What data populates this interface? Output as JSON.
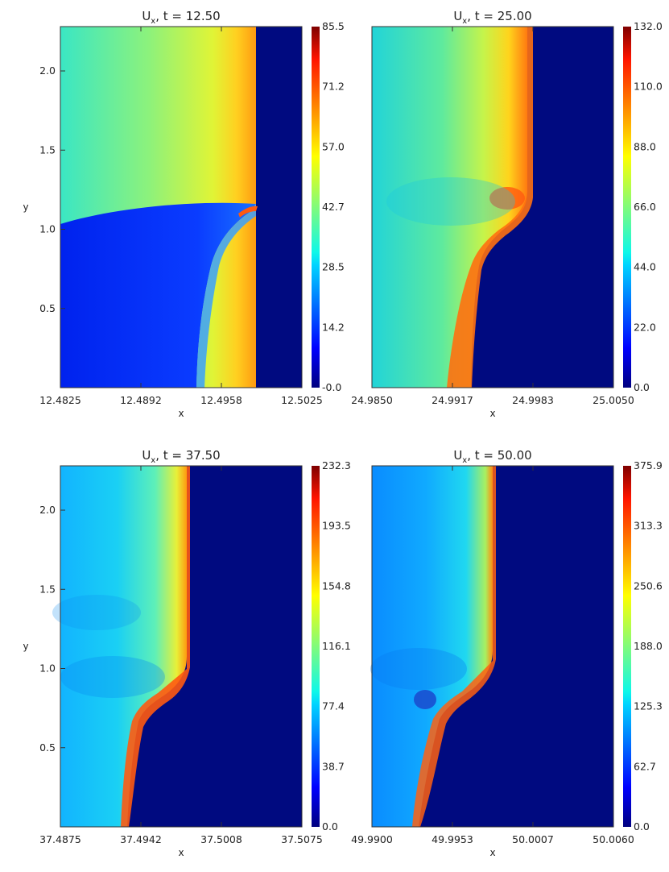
{
  "chart_data": [
    {
      "type": "heatmap",
      "title": "U_x, t = 12.50",
      "title_main": "U",
      "title_sub": "x",
      "title_rest": ", t = 12.50",
      "xlabel": "x",
      "ylabel": "y",
      "xlim": [
        12.4825,
        12.5025
      ],
      "ylim": [
        0.0,
        2.28
      ],
      "xticks": [
        "12.4825",
        "12.4892",
        "12.4958",
        "12.5025"
      ],
      "yticks": [
        "0.5",
        "1.0",
        "1.5",
        "2.0"
      ],
      "colorbar": {
        "min": 0.0,
        "max": 85.5,
        "labels": [
          "-0.0",
          "14.2",
          "28.5",
          "42.7",
          "57.0",
          "71.2",
          "85.5"
        ]
      }
    },
    {
      "type": "heatmap",
      "title": "U_x, t = 25.00",
      "title_main": "U",
      "title_sub": "x",
      "title_rest": ", t = 25.00",
      "xlabel": "x",
      "ylabel": "",
      "xlim": [
        24.985,
        25.005
      ],
      "ylim": [
        0.0,
        2.28
      ],
      "xticks": [
        "24.9850",
        "24.9917",
        "24.9983",
        "25.0050"
      ],
      "yticks": [],
      "colorbar": {
        "min": 0.0,
        "max": 132.0,
        "labels": [
          "0.0",
          "22.0",
          "44.0",
          "66.0",
          "88.0",
          "110.0",
          "132.0"
        ]
      }
    },
    {
      "type": "heatmap",
      "title": "U_x, t = 37.50",
      "title_main": "U",
      "title_sub": "x",
      "title_rest": ", t = 37.50",
      "xlabel": "x",
      "ylabel": "y",
      "xlim": [
        37.4875,
        37.5075
      ],
      "ylim": [
        0.0,
        2.28
      ],
      "xticks": [
        "37.4875",
        "37.4942",
        "37.5008",
        "37.5075"
      ],
      "yticks": [
        "0.5",
        "1.0",
        "1.5",
        "2.0"
      ],
      "colorbar": {
        "min": 0.0,
        "max": 232.3,
        "labels": [
          "0.0",
          "38.7",
          "77.4",
          "116.1",
          "154.8",
          "193.5",
          "232.3"
        ]
      }
    },
    {
      "type": "heatmap",
      "title": "U_x, t = 50.00",
      "title_main": "U",
      "title_sub": "x",
      "title_rest": ", t = 50.00",
      "xlabel": "x",
      "ylabel": "",
      "xlim": [
        49.99,
        50.006
      ],
      "ylim": [
        0.0,
        2.28
      ],
      "xticks": [
        "49.9900",
        "49.9953",
        "50.0007",
        "50.0060"
      ],
      "yticks": [],
      "colorbar": {
        "min": 0.0,
        "max": 375.9,
        "labels": [
          "0.0",
          "62.7",
          "125.3",
          "188.0",
          "250.6",
          "313.3",
          "375.9"
        ]
      }
    }
  ],
  "colors": {
    "background_flow": "#000a80",
    "jet_low": "#0033ff",
    "jet_mid": "#00e0ff",
    "jet_high": "#ffff00",
    "jet_max": "#800000"
  }
}
